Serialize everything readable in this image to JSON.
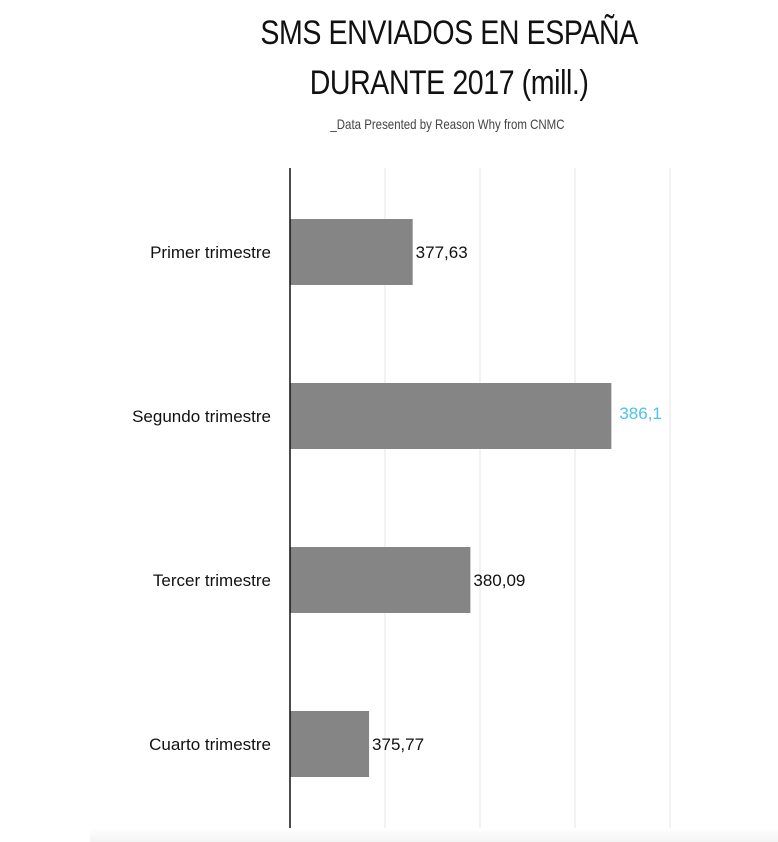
{
  "header": {
    "title_line1": "SMS ENVIADOS EN ESPAÑA",
    "title_line2": "DURANTE 2017 (mill.)",
    "subtitle": "_Data Presented by Reason Why from CNMC"
  },
  "chart_data": {
    "type": "bar",
    "orientation": "horizontal",
    "title": "SMS ENVIADOS EN ESPAÑA DURANTE 2017 (mill.)",
    "subtitle": "_Data Presented by Reason Why from CNMC",
    "categories": [
      "Primer trimestre",
      "Segundo trimestre",
      "Tercer trimestre",
      "Cuarto trimestre"
    ],
    "values": [
      377.63,
      386.1,
      380.09,
      375.77
    ],
    "value_labels": [
      "377,63",
      "386,1",
      "380,09",
      "375,77"
    ],
    "highlight_index": 1,
    "xlim": [
      372.4,
      388.6
    ],
    "grid": true,
    "xlabel": "",
    "ylabel": "",
    "colors": {
      "bar": "#858585",
      "highlight_label": "#4dc3e6",
      "label": "#111111",
      "axis": "#111111",
      "grid": "#e6e6e6"
    }
  }
}
